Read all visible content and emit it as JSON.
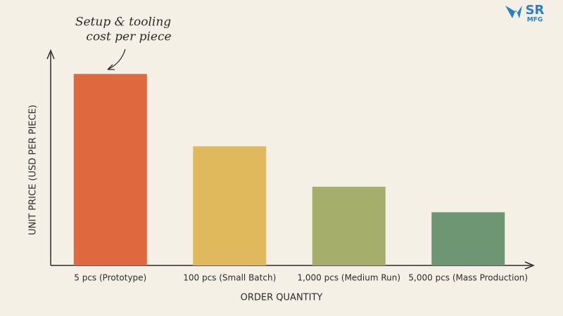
{
  "chart_data": {
    "type": "bar",
    "annotation": [
      "Setup & tooling",
      "cost per piece"
    ],
    "x_label": "ORDER QUANTITY",
    "y_label": "UNIT PRICE (USD PER PIECE)",
    "categories": [
      "5 pcs (Prototype)",
      "100 pcs (Small Batch)",
      "1,000 pcs (Medium Run)",
      "5,000 pcs (Mass Production)"
    ],
    "values": [
      90,
      56,
      37,
      25
    ],
    "colors": [
      "#e0683f",
      "#e0b95d",
      "#a6ae6c",
      "#6f9672"
    ],
    "ylim": [
      0,
      100
    ]
  },
  "logo": {
    "line1": "SR",
    "line2": "MFG"
  }
}
